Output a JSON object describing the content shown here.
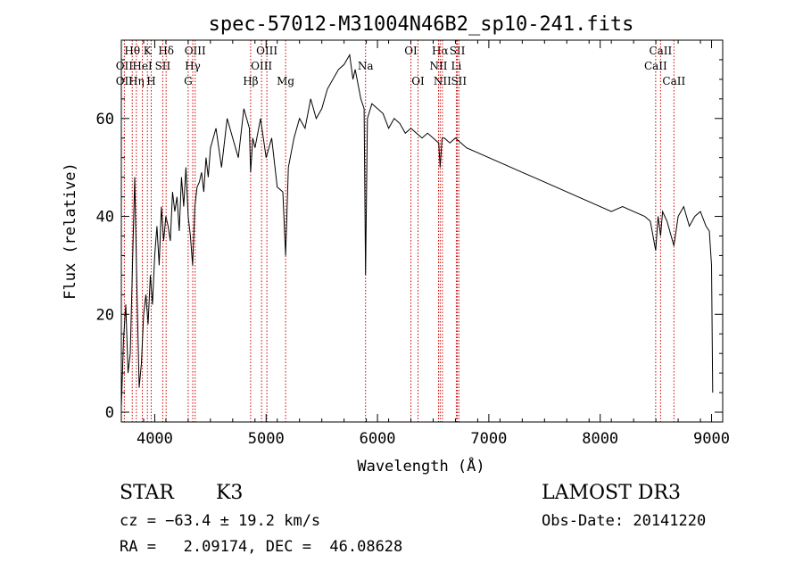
{
  "chart_data": {
    "type": "line",
    "title": "spec-57012-M31004N46B2_sp10-241.fits",
    "xlabel": "Wavelength (Å)",
    "ylabel": "Flux (relative)",
    "xlim": [
      3700,
      9100
    ],
    "ylim": [
      -2,
      76
    ],
    "x_ticks": [
      4000,
      5000,
      6000,
      7000,
      8000,
      9000
    ],
    "y_ticks": [
      0,
      20,
      40,
      60
    ],
    "grid": false,
    "series_color": "#000000",
    "line_marker_color": "#cc0000",
    "spectrum": {
      "x": [
        3700,
        3720,
        3740,
        3760,
        3780,
        3800,
        3820,
        3840,
        3860,
        3880,
        3900,
        3920,
        3940,
        3960,
        3980,
        4000,
        4020,
        4040,
        4060,
        4080,
        4100,
        4120,
        4140,
        4160,
        4180,
        4200,
        4220,
        4240,
        4260,
        4280,
        4300,
        4320,
        4340,
        4360,
        4380,
        4400,
        4420,
        4440,
        4460,
        4480,
        4500,
        4550,
        4600,
        4650,
        4700,
        4750,
        4800,
        4850,
        4861,
        4880,
        4900,
        4950,
        5000,
        5050,
        5100,
        5150,
        5175,
        5200,
        5250,
        5300,
        5350,
        5400,
        5450,
        5500,
        5550,
        5600,
        5650,
        5700,
        5750,
        5780,
        5800,
        5850,
        5880,
        5893,
        5910,
        5950,
        6000,
        6050,
        6100,
        6150,
        6200,
        6250,
        6300,
        6350,
        6400,
        6450,
        6500,
        6550,
        6563,
        6580,
        6600,
        6650,
        6700,
        6750,
        6800,
        6900,
        7000,
        7100,
        7200,
        7300,
        7400,
        7500,
        7600,
        7700,
        7800,
        7900,
        8000,
        8100,
        8200,
        8300,
        8400,
        8450,
        8498,
        8520,
        8542,
        8560,
        8600,
        8662,
        8700,
        8750,
        8800,
        8850,
        8900,
        8950,
        8980,
        9000,
        9010
      ],
      "y": [
        1,
        15,
        22,
        8,
        12,
        30,
        48,
        25,
        5,
        10,
        20,
        24,
        18,
        28,
        22,
        32,
        38,
        30,
        42,
        35,
        40,
        38,
        35,
        45,
        41,
        44,
        37,
        48,
        42,
        50,
        40,
        36,
        30,
        42,
        46,
        47,
        49,
        45,
        52,
        48,
        54,
        58,
        50,
        60,
        56,
        52,
        62,
        58,
        49,
        56,
        54,
        60,
        52,
        56,
        46,
        45,
        32,
        50,
        56,
        60,
        58,
        64,
        60,
        62,
        66,
        68,
        70,
        71,
        73,
        68,
        70,
        64,
        62,
        28,
        60,
        63,
        62,
        61,
        58,
        60,
        59,
        57,
        58,
        57,
        56,
        57,
        56,
        55,
        50,
        56,
        56,
        55,
        56,
        55,
        54,
        53,
        52,
        51,
        50,
        49,
        48,
        47,
        46,
        45,
        44,
        43,
        42,
        41,
        42,
        41,
        40,
        39,
        33,
        40,
        36,
        41,
        39,
        34,
        40,
        42,
        38,
        40,
        41,
        38,
        37,
        30,
        4
      ]
    },
    "line_ids": [
      {
        "label": "Hθ",
        "wl": 3798,
        "row": 0
      },
      {
        "label": "K",
        "wl": 3934,
        "row": 0
      },
      {
        "label": "Hδ",
        "wl": 4102,
        "row": 0
      },
      {
        "label": "OIII",
        "wl": 4363,
        "row": 0
      },
      {
        "label": "OIII",
        "wl": 5007,
        "row": 0
      },
      {
        "label": "OI",
        "wl": 6300,
        "row": 0
      },
      {
        "label": "Hα",
        "wl": 6563,
        "row": 0
      },
      {
        "label": "SII",
        "wl": 6717,
        "row": 0
      },
      {
        "label": "CaII",
        "wl": 8542,
        "row": 0
      },
      {
        "label": "OII",
        "wl": 3727,
        "row": 1
      },
      {
        "label": "HeI",
        "wl": 3889,
        "row": 1
      },
      {
        "label": "SII",
        "wl": 4072,
        "row": 1
      },
      {
        "label": "Hγ",
        "wl": 4341,
        "row": 1
      },
      {
        "label": "OIII",
        "wl": 4959,
        "row": 1
      },
      {
        "label": "Na",
        "wl": 5893,
        "row": 1
      },
      {
        "label": "NII",
        "wl": 6548,
        "row": 1
      },
      {
        "label": "Li",
        "wl": 6708,
        "row": 1
      },
      {
        "label": "CaII",
        "wl": 8498,
        "row": 1
      },
      {
        "label": "OII",
        "wl": 3727,
        "row": 2
      },
      {
        "label": "Hη",
        "wl": 3835,
        "row": 2
      },
      {
        "label": "H",
        "wl": 3968,
        "row": 2
      },
      {
        "label": "G",
        "wl": 4300,
        "row": 2
      },
      {
        "label": "Hβ",
        "wl": 4861,
        "row": 2
      },
      {
        "label": "Mg",
        "wl": 5175,
        "row": 2
      },
      {
        "label": "OI",
        "wl": 6364,
        "row": 2
      },
      {
        "label": "NII",
        "wl": 6583,
        "row": 2
      },
      {
        "label": "SII",
        "wl": 6731,
        "row": 2
      },
      {
        "label": "CaII",
        "wl": 8662,
        "row": 2
      }
    ]
  },
  "info": {
    "object_class": "STAR",
    "subclass": "K3",
    "survey": "LAMOST DR3",
    "redshift": "cz = −63.4 ± 19.2 km/s",
    "obs_date": "Obs-Date: 20141220",
    "coords": "RA =   2.09174, DEC =  46.08628"
  }
}
